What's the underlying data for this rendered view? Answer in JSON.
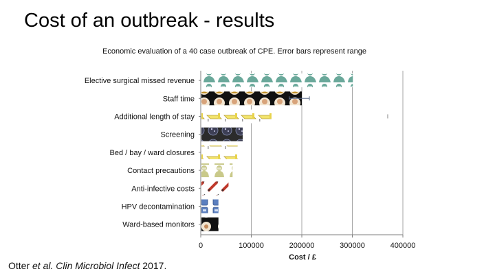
{
  "slide": {
    "title": "Cost of an outbreak - results",
    "citation_authors": "Otter ",
    "citation_etal": "et al.",
    "citation_journal": " Clin Microbiol Infect",
    "citation_year": " 2017."
  },
  "chart_data": {
    "type": "bar",
    "title": "Economic evaluation of a 40 case outbreak of CPE. Error bars represent range",
    "xlabel": "Cost / £",
    "ylabel": "",
    "xlim": [
      0,
      400000
    ],
    "xticks": [
      0,
      100000,
      200000,
      300000,
      400000
    ],
    "xtick_labels": [
      "0",
      "100000",
      "200000",
      "300000",
      "400000"
    ],
    "grid": "vertical",
    "orientation": "horizontal",
    "categories": [
      "Elective surgical missed revenue",
      "Staff time",
      "Additional length of stay",
      "Screening",
      "Bed / bay / ward closures",
      "Contact precautions",
      "Anti-infective costs",
      "HPV decontamination",
      "Ward-based monitors"
    ],
    "values": [
      301000,
      200000,
      140000,
      83000,
      73000,
      63000,
      55000,
      35000,
      35000
    ],
    "error_range": [
      null,
      [
        175000,
        215000
      ],
      [
        null,
        370000
      ],
      null,
      null,
      null,
      null,
      null,
      null
    ],
    "icons": [
      "surgeon-icon",
      "staff-portrait-icon",
      "hospital-bed-icon",
      "petri-dish-icon",
      "hospital-bed-icon",
      "gowned-person-icon",
      "syringe-icon",
      "decontamination-unit-icon",
      "monitor-badge-icon"
    ],
    "colors": {
      "axis": "#7f7f7f",
      "grid": "#a6a6a6",
      "surgeon": "#6aa89a",
      "bed": "#f2e36b",
      "petri": "#2b2b2b",
      "gown": "#c9c98a",
      "syringe": "#c0392b",
      "hpv": "#5b7fbf"
    }
  }
}
